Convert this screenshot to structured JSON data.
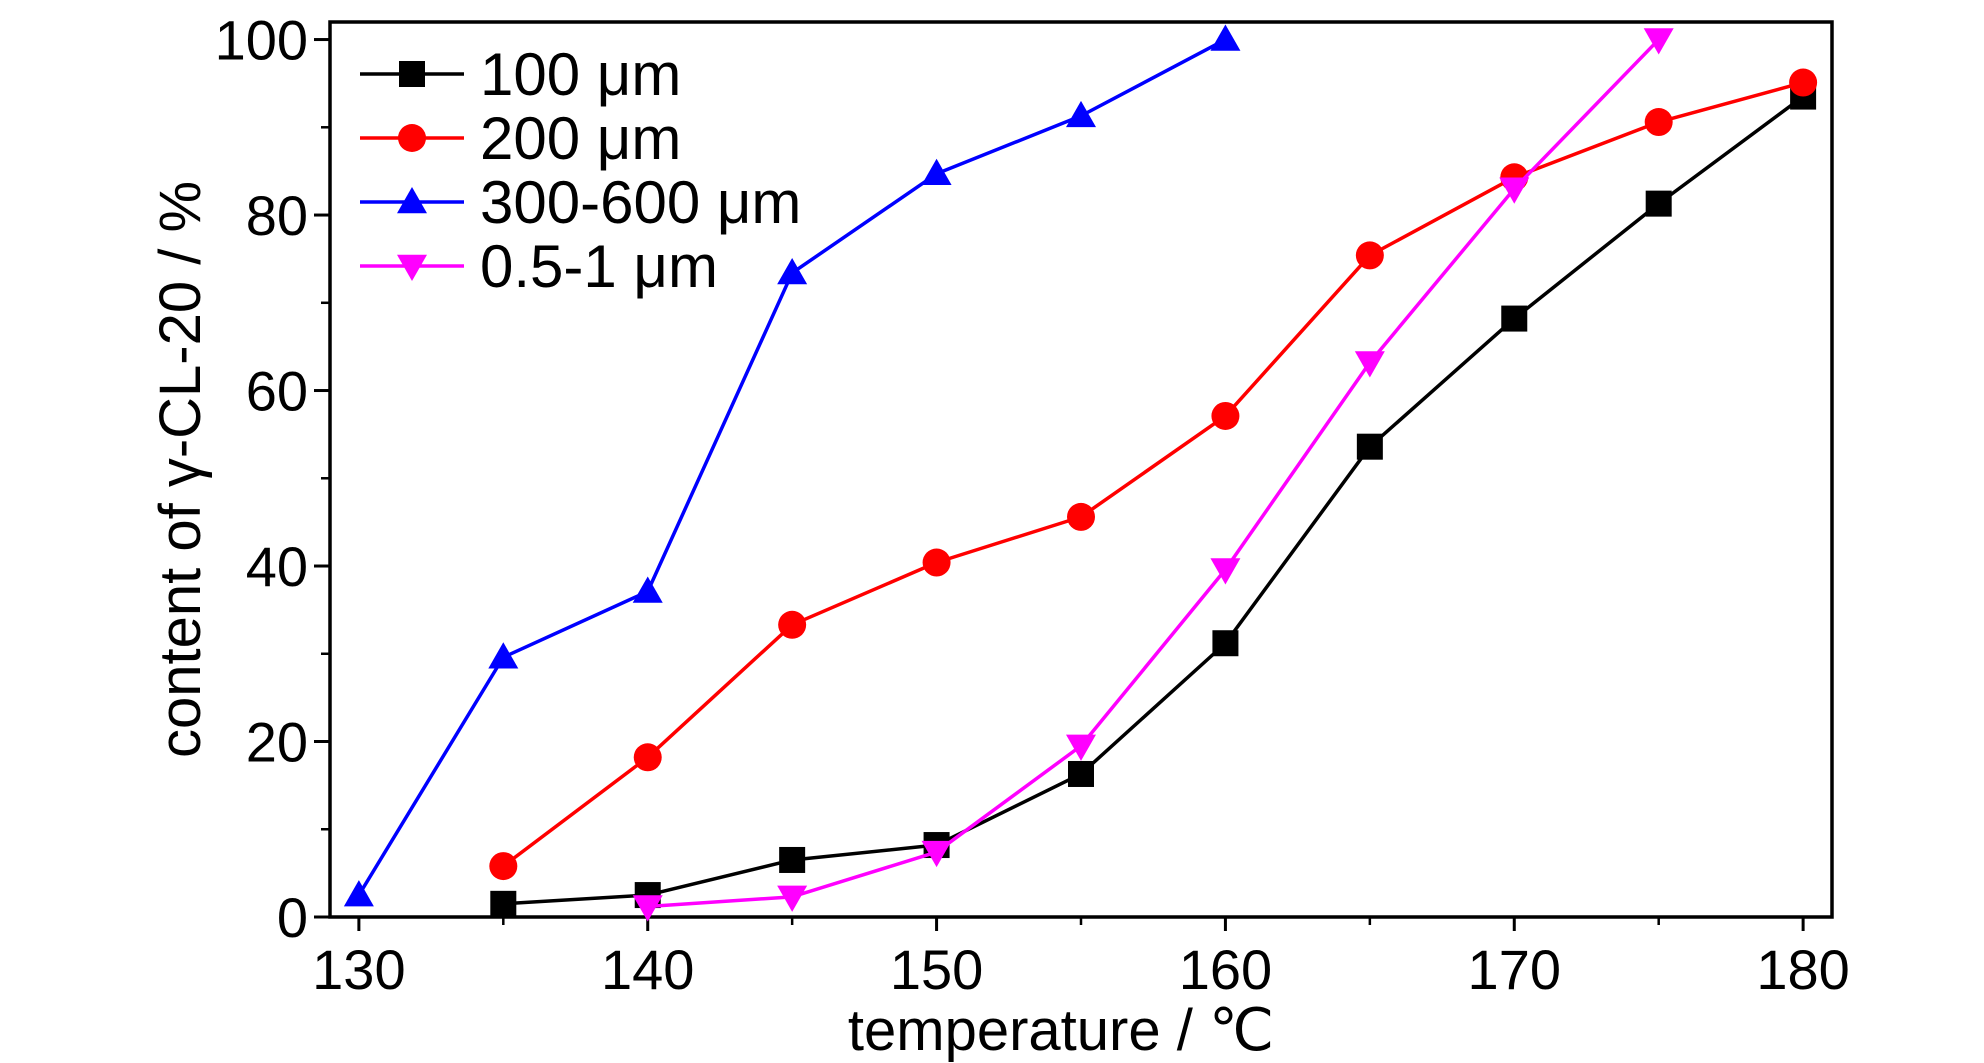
{
  "chart_data": {
    "type": "line",
    "title": "",
    "xlabel": "temperature / ℃",
    "ylabel": "content of γ-CL-20 / %",
    "xlim": [
      129,
      181
    ],
    "ylim": [
      0,
      102
    ],
    "xticks": [
      130,
      140,
      150,
      160,
      170,
      180
    ],
    "yticks": [
      0,
      20,
      40,
      60,
      80,
      100
    ],
    "grid": false,
    "legend_position": "top-left",
    "series": [
      {
        "name": "100 μm",
        "color": "#000000",
        "marker": "square",
        "x": [
          135,
          140,
          145,
          150,
          155,
          160,
          165,
          170,
          175,
          180
        ],
        "y": [
          1.5,
          2.5,
          6.5,
          8.2,
          16.3,
          31.2,
          53.6,
          68.2,
          81.3,
          93.5
        ]
      },
      {
        "name": "200 μm",
        "color": "#ff0000",
        "marker": "circle",
        "x": [
          135,
          140,
          145,
          150,
          155,
          160,
          165,
          170,
          175,
          180
        ],
        "y": [
          5.8,
          18.2,
          33.3,
          40.4,
          45.6,
          57.1,
          75.4,
          84.3,
          90.6,
          95.1
        ]
      },
      {
        "name": "300-600 μm",
        "color": "#0000ff",
        "marker": "triangle-up",
        "x": [
          130,
          135,
          140,
          145,
          150,
          155,
          160
        ],
        "y": [
          2.5,
          29.6,
          37.1,
          73.4,
          84.7,
          91.3,
          100
        ]
      },
      {
        "name": "0.5-1 μm",
        "color": "#ff00ff",
        "marker": "triangle-down",
        "x": [
          140,
          145,
          150,
          155,
          160,
          165,
          170,
          175
        ],
        "y": [
          1.2,
          2.3,
          7.4,
          19.5,
          39.6,
          63.2,
          83.0,
          100
        ]
      }
    ]
  }
}
